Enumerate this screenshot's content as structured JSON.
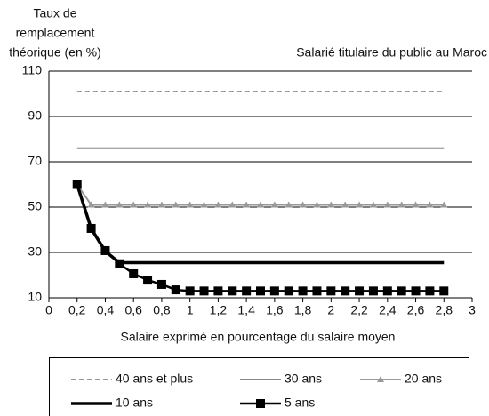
{
  "chart_data": {
    "type": "line",
    "ylabel": [
      "Taux de",
      "remplacement",
      "théorique (en %)"
    ],
    "title": "Salarié titulaire du public au Maroc",
    "xlabel": "Salaire exprimé en pourcentage du salaire moyen",
    "xlim": [
      0,
      3
    ],
    "xticks": [
      0,
      {
        "value": 0.2,
        "label": "0,2"
      },
      {
        "value": 0.4,
        "label": "0,4"
      },
      {
        "value": 0.6,
        "label": "0,6"
      },
      {
        "value": 0.8,
        "label": "0,8"
      },
      1,
      {
        "value": 1.2,
        "label": "1,2"
      },
      {
        "value": 1.4,
        "label": "1,4"
      },
      {
        "value": 1.6,
        "label": "1,6"
      },
      {
        "value": 1.8,
        "label": "1,8"
      },
      2,
      {
        "value": 2.2,
        "label": "2,2"
      },
      {
        "value": 2.4,
        "label": "2,4"
      },
      {
        "value": 2.6,
        "label": "2,6"
      },
      {
        "value": 2.8,
        "label": "2,8"
      },
      3
    ],
    "ylim": [
      10,
      110
    ],
    "yticks": [
      10,
      30,
      50,
      70,
      90,
      110
    ],
    "grid": true,
    "series": [
      {
        "name": "40 ans et plus",
        "color": "#999999",
        "dashed": true,
        "width": 2,
        "marker": null,
        "x": [
          0.2,
          2.8
        ],
        "values": [
          101,
          101
        ]
      },
      {
        "name": "30 ans",
        "color": "#888888",
        "dashed": false,
        "width": 2,
        "marker": null,
        "x": [
          0.2,
          2.8
        ],
        "values": [
          76,
          76
        ]
      },
      {
        "name": "20 ans",
        "color": "#999999",
        "dashed": false,
        "width": 2,
        "marker": "triangle",
        "x": [
          0.2,
          0.3,
          0.4,
          0.5,
          0.6,
          0.7,
          0.8,
          0.9,
          1.0,
          1.1,
          1.2,
          1.3,
          1.4,
          1.5,
          1.6,
          1.7,
          1.8,
          1.9,
          2.0,
          2.1,
          2.2,
          2.3,
          2.4,
          2.5,
          2.6,
          2.7,
          2.8
        ],
        "values": [
          60,
          51,
          51,
          51,
          51,
          51,
          51,
          51,
          51,
          51,
          51,
          51,
          51,
          51,
          51,
          51,
          51,
          51,
          51,
          51,
          51,
          51,
          51,
          51,
          51,
          51,
          51
        ]
      },
      {
        "name": "10 ans",
        "color": "#000000",
        "dashed": false,
        "width": 3.5,
        "marker": null,
        "x": [
          0.2,
          0.3,
          0.4,
          0.5,
          2.8
        ],
        "values": [
          60,
          40.5,
          30.5,
          25.5,
          25.5
        ]
      },
      {
        "name": "5 ans",
        "color": "#000000",
        "dashed": false,
        "width": 2.5,
        "marker": "square",
        "x": [
          0.2,
          0.3,
          0.4,
          0.5,
          0.6,
          0.7,
          0.8,
          0.9,
          1.0,
          1.1,
          1.2,
          1.3,
          1.4,
          1.5,
          1.6,
          1.7,
          1.8,
          1.9,
          2.0,
          2.1,
          2.2,
          2.3,
          2.4,
          2.5,
          2.6,
          2.7,
          2.8
        ],
        "values": [
          60,
          40.6,
          30.8,
          25,
          20.6,
          17.8,
          15.9,
          13.5,
          13,
          13,
          13,
          13,
          13,
          13,
          13,
          13,
          13,
          13,
          13,
          13,
          13,
          13,
          13,
          13,
          13,
          13,
          13
        ]
      }
    ]
  }
}
